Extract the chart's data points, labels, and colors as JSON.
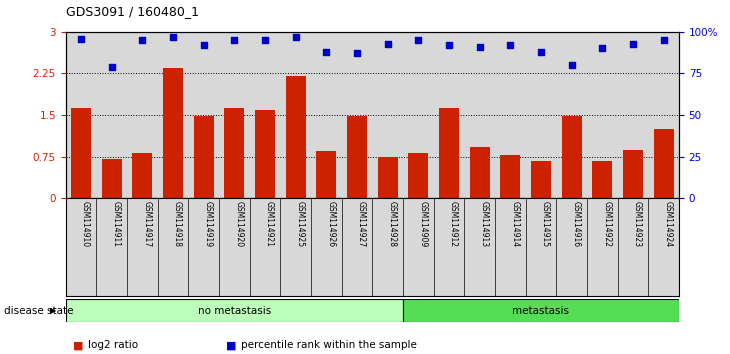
{
  "title": "GDS3091 / 160480_1",
  "samples": [
    "GSM114910",
    "GSM114911",
    "GSM114917",
    "GSM114918",
    "GSM114919",
    "GSM114920",
    "GSM114921",
    "GSM114925",
    "GSM114926",
    "GSM114927",
    "GSM114928",
    "GSM114909",
    "GSM114912",
    "GSM114913",
    "GSM114914",
    "GSM114915",
    "GSM114916",
    "GSM114922",
    "GSM114923",
    "GSM114924"
  ],
  "log2_ratio": [
    1.62,
    0.7,
    0.82,
    2.35,
    1.48,
    1.62,
    1.6,
    2.2,
    0.85,
    1.48,
    0.75,
    0.82,
    1.62,
    0.92,
    0.78,
    0.68,
    1.48,
    0.68,
    0.87,
    1.25
  ],
  "percentile_rank": [
    96,
    79,
    95,
    97,
    92,
    95,
    95,
    97,
    88,
    87,
    93,
    95,
    92,
    91,
    92,
    88,
    80,
    90,
    93,
    95
  ],
  "no_metastasis_count": 11,
  "metastasis_count": 9,
  "bar_color": "#cc2200",
  "dot_color": "#0000cc",
  "ylim_left": [
    0,
    3
  ],
  "ylim_right": [
    0,
    100
  ],
  "yticks_left": [
    0,
    0.75,
    1.5,
    2.25,
    3
  ],
  "ytick_labels_left": [
    "0",
    "0.75",
    "1.5",
    "2.25",
    "3"
  ],
  "yticks_right": [
    0,
    25,
    50,
    75,
    100
  ],
  "ytick_labels_right": [
    "0",
    "25",
    "50",
    "75",
    "100%"
  ],
  "hlines": [
    0.75,
    1.5,
    2.25
  ],
  "no_meta_color": "#bbffbb",
  "meta_color": "#55dd55",
  "legend_items": [
    "log2 ratio",
    "percentile rank within the sample"
  ],
  "legend_colors": [
    "#cc2200",
    "#0000cc"
  ],
  "bg_color": "#d8d8d8"
}
